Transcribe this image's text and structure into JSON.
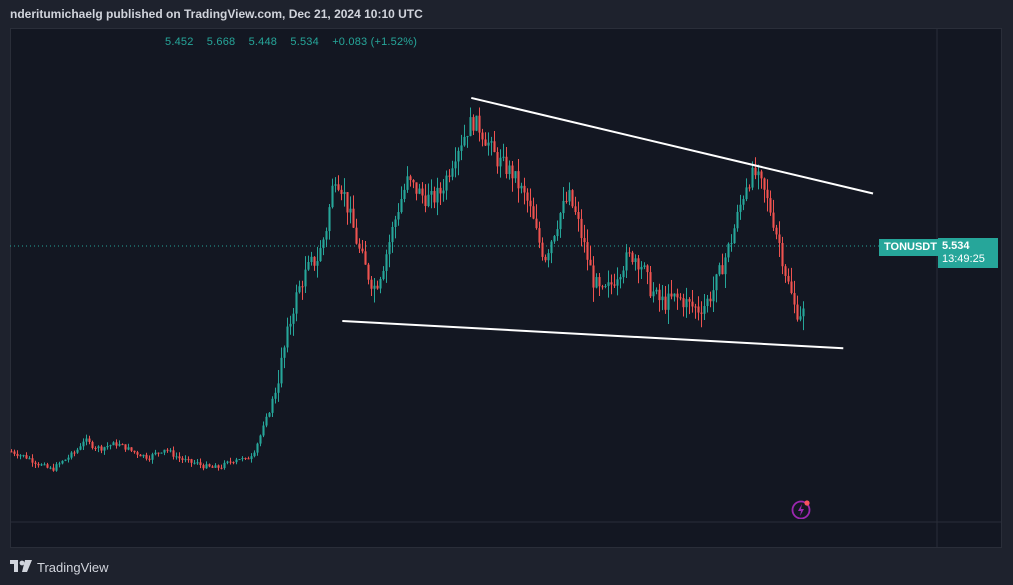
{
  "header": {
    "publisher": "nderitumichaelg published on TradingView.com, Dec 21, 2024 10:10 UTC"
  },
  "ohlc": {
    "open": "5.452",
    "high": "5.668",
    "low": "5.448",
    "close": "5.534",
    "change": "+0.083 (+1.52%)"
  },
  "symbol": "TONUSDT",
  "price_label": {
    "price": "5.534",
    "timer": "13:49:25"
  },
  "footer": {
    "brand": "TradingView"
  },
  "colors": {
    "up": "#26a69a",
    "down": "#ef5350",
    "background": "#131722",
    "trendline": "#ffffff"
  },
  "icons": {
    "flash": "flash-icon",
    "logo": "tradingview-logo-icon"
  },
  "chart_data": {
    "type": "candlestick",
    "symbol": "TONUSDT",
    "last_price": 5.534,
    "note_series": "approximate close path sampled from chart",
    "close_path": [
      4.62,
      4.6,
      4.58,
      4.55,
      4.52,
      4.5,
      4.54,
      4.58,
      4.62,
      4.7,
      4.66,
      4.64,
      4.66,
      4.67,
      4.65,
      4.62,
      4.6,
      4.58,
      4.61,
      4.64,
      4.6,
      4.57,
      4.55,
      4.54,
      4.52,
      4.51,
      4.52,
      4.55,
      4.58,
      4.56,
      4.62,
      4.75,
      4.9,
      5.1,
      5.35,
      5.6,
      5.75,
      5.85,
      5.9,
      6.1,
      6.45,
      6.35,
      6.15,
      5.95,
      5.8,
      5.7,
      5.85,
      6.05,
      6.25,
      6.4,
      6.35,
      6.3,
      6.28,
      6.32,
      6.45,
      6.6,
      6.7,
      6.8,
      6.75,
      6.65,
      6.55,
      6.5,
      6.45,
      6.35,
      6.25,
      6.05,
      5.9,
      6.05,
      6.2,
      6.3,
      6.15,
      5.95,
      5.75,
      5.65,
      5.7,
      5.8,
      5.88,
      5.92,
      5.85,
      5.7,
      5.62,
      5.6,
      5.63,
      5.62,
      5.58,
      5.56,
      5.6,
      5.7,
      5.85,
      6.0,
      6.2,
      6.4,
      6.45,
      6.35,
      6.2,
      6.0,
      5.75,
      5.55,
      5.534
    ],
    "trendlines": [
      {
        "name": "upper",
        "from": [
          0.465,
          6.95
        ],
        "to": [
          0.87,
          6.32
        ]
      },
      {
        "name": "lower",
        "from": [
          0.335,
          5.48
        ],
        "to": [
          0.84,
          5.3
        ]
      }
    ]
  }
}
